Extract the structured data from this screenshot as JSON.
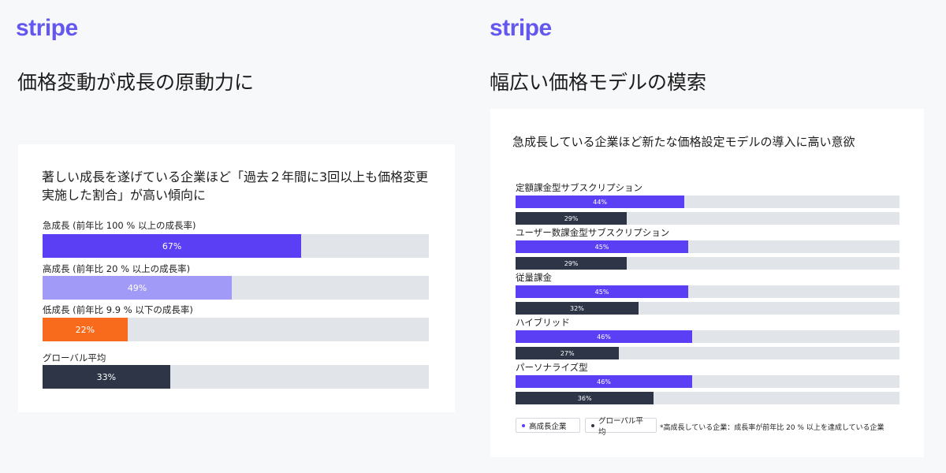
{
  "left": {
    "logo": "stripe",
    "slide_title": "価格変動が成長の原動力に",
    "card_title": "著しい成長を遂げている企業ほど「過去２年間に3回以上も価格変更実施した割合」が高い傾向に",
    "chart_data": {
      "type": "bar",
      "orientation": "horizontal",
      "xlim": [
        0,
        100
      ],
      "categories": [
        "急成長 (前年比 100 % 以上の成長率)",
        "高成長 (前年比 20 % 以上の成長率)",
        "低成長 (前年比 9.9 % 以下の成長率)",
        "グローバル平均"
      ],
      "values": [
        67,
        49,
        22,
        33
      ],
      "value_labels": [
        "67%",
        "49%",
        "22%",
        "33%"
      ],
      "colors": [
        "#5a3ff5",
        "#a29af7",
        "#f86a1c",
        "#2d3547"
      ]
    }
  },
  "right": {
    "logo": "stripe",
    "slide_title": "幅広い価格モデルの模索",
    "card_title": "急成長している企業ほど新たな価格設定モデルの導入に高い意欲",
    "chart_data": {
      "type": "bar",
      "orientation": "horizontal",
      "xlim": [
        0,
        100
      ],
      "categories": [
        "定額課金型サブスクリプション",
        "ユーザー数課金型サブスクリプション",
        "従量課金",
        "ハイブリッド",
        "パーソナライズ型"
      ],
      "series": [
        {
          "name": "高成長企業",
          "color": "#5a3ff5",
          "values": [
            44,
            45,
            45,
            46,
            46
          ],
          "value_labels": [
            "44%",
            "45%",
            "45%",
            "46%",
            "46%"
          ]
        },
        {
          "name": "グローバル平均",
          "color": "#2d3547",
          "values": [
            29,
            29,
            32,
            27,
            36
          ],
          "value_labels": [
            "29%",
            "29%",
            "32%",
            "27%",
            "36%"
          ]
        }
      ],
      "legend": [
        "高成長企業",
        "グローバル平均"
      ],
      "note": "*高成長している企業：成長率が前年比 20 % 以上を達成している企業"
    }
  }
}
